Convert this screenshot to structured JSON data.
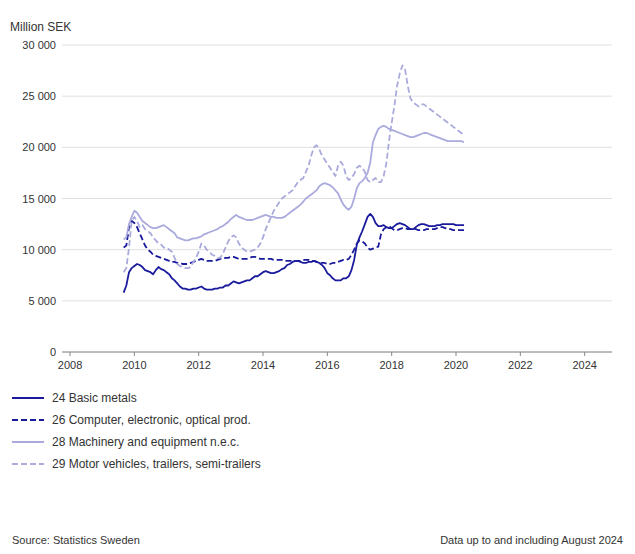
{
  "chart_data": {
    "type": "line",
    "ylabel": "Million SEK",
    "annotations": [
      "Source: Statistics Sweden",
      "Data up to and including August 2024"
    ],
    "x": [
      2009.6666666666667,
      2009.75,
      2009.8333333333333,
      2009.9166666666667,
      2010,
      2010.0833333333333,
      2010.1666666666667,
      2010.25,
      2010.3333333333333,
      2010.4166666666667,
      2010.5,
      2010.5833333333333,
      2010.6666666666667,
      2010.75,
      2010.8333333333333,
      2010.9166666666667,
      2011,
      2011.0833333333333,
      2011.1666666666667,
      2011.25,
      2011.3333333333333,
      2011.4166666666667,
      2011.5,
      2011.5833333333333,
      2011.6666666666667,
      2011.75,
      2011.8333333333333,
      2011.9166666666667,
      2012,
      2012.0833333333333,
      2012.1666666666667,
      2012.25,
      2012.3333333333333,
      2012.4166666666667,
      2012.5,
      2012.5833333333333,
      2012.6666666666667,
      2012.75,
      2012.8333333333333,
      2012.9166666666667,
      2013,
      2013.0833333333333,
      2013.1666666666667,
      2013.25,
      2013.3333333333333,
      2013.4166666666667,
      2013.5,
      2013.5833333333333,
      2013.6666666666667,
      2013.75,
      2013.8333333333333,
      2013.9166666666667,
      2014,
      2014.0833333333333,
      2014.1666666666667,
      2014.25,
      2014.3333333333333,
      2014.4166666666667,
      2014.5,
      2014.5833333333333,
      2014.6666666666667,
      2014.75,
      2014.8333333333333,
      2014.9166666666667,
      2015,
      2015.0833333333333,
      2015.1666666666667,
      2015.25,
      2015.3333333333333,
      2015.4166666666667,
      2015.5,
      2015.5833333333333,
      2015.6666666666667,
      2015.75,
      2015.8333333333333,
      2015.9166666666667,
      2016,
      2016.0833333333333,
      2016.1666666666667,
      2016.25,
      2016.3333333333333,
      2016.4166666666667,
      2016.5,
      2016.5833333333333,
      2016.6666666666667,
      2016.75,
      2016.8333333333333,
      2016.9166666666667,
      2017,
      2017.0833333333333,
      2017.1666666666667,
      2017.25,
      2017.3333333333333,
      2017.4166666666667,
      2017.5,
      2017.5833333333333,
      2017.6666666666667,
      2017.75,
      2017.8333333333333,
      2017.9166666666667,
      2018,
      2018.0833333333333,
      2018.1666666666667,
      2018.25,
      2018.3333333333333,
      2018.4166666666667,
      2018.5,
      2018.5833333333333,
      2018.6666666666667,
      2018.75,
      2018.8333333333333,
      2018.9166666666667,
      2019,
      2019.0833333333333,
      2019.1666666666667,
      2019.25,
      2019.3333333333333,
      2019.4166666666667,
      2019.5,
      2019.5833333333333,
      2019.6666666666667,
      2019.75,
      2019.8333333333333,
      2019.9166666666667,
      2020,
      2020.0833333333333,
      2020.1666666666667,
      2020.25
    ],
    "series": [
      {
        "name": "24 Basic metals",
        "color": "#1a1a9c",
        "line_style": "solid",
        "values": [
          5800,
          6500,
          7800,
          8200,
          8400,
          8600,
          8500,
          8300,
          8000,
          7900,
          7800,
          7600,
          8000,
          8300,
          8100,
          8000,
          7800,
          7600,
          7200,
          7000,
          6700,
          6400,
          6200,
          6200,
          6100,
          6100,
          6200,
          6200,
          6300,
          6400,
          6200,
          6100,
          6100,
          6100,
          6200,
          6200,
          6300,
          6300,
          6500,
          6500,
          6700,
          6900,
          6800,
          6700,
          6800,
          6900,
          7000,
          7000,
          7200,
          7400,
          7400,
          7600,
          7800,
          7900,
          7800,
          7700,
          7700,
          7800,
          7900,
          8100,
          8200,
          8500,
          8600,
          8800,
          8900,
          8900,
          8800,
          8700,
          8700,
          8800,
          8800,
          8900,
          8800,
          8700,
          8500,
          8200,
          7700,
          7500,
          7200,
          7000,
          7000,
          7000,
          7200,
          7200,
          7400,
          8000,
          9000,
          10500,
          11200,
          11800,
          12500,
          13200,
          13500,
          13200,
          12600,
          12300,
          12300,
          12400,
          12200,
          12100,
          12100,
          12300,
          12500,
          12600,
          12500,
          12400,
          12200,
          12000,
          12000,
          12200,
          12400,
          12500,
          12500,
          12400,
          12300,
          12300,
          12300,
          12400,
          12400,
          12500,
          12500,
          12500,
          12500,
          12500,
          12400,
          12400,
          12400,
          12400
        ]
      },
      {
        "name": "26 Computer, electronic, optical prod.",
        "color": "#1a1a9c",
        "line_style": "dashed",
        "values": [
          10200,
          10400,
          12200,
          12800,
          12600,
          12200,
          11600,
          11000,
          10400,
          10000,
          9800,
          9500,
          9400,
          9300,
          9200,
          9100,
          9000,
          8900,
          8800,
          8800,
          8700,
          8700,
          8600,
          8600,
          8600,
          8700,
          8800,
          8900,
          9000,
          9100,
          9000,
          8900,
          8900,
          8900,
          8900,
          9000,
          9100,
          9100,
          9200,
          9200,
          9300,
          9300,
          9200,
          9100,
          9100,
          9100,
          9100,
          9200,
          9300,
          9300,
          9200,
          9100,
          9100,
          9100,
          9100,
          9100,
          9000,
          9000,
          9000,
          9000,
          8900,
          8900,
          8900,
          8900,
          8900,
          8900,
          8900,
          9000,
          9000,
          9000,
          8900,
          8900,
          8800,
          8800,
          8700,
          8700,
          8600,
          8600,
          8700,
          8700,
          8800,
          8900,
          9000,
          9000,
          9100,
          9500,
          10000,
          10600,
          10900,
          10800,
          10600,
          10200,
          10000,
          10100,
          10200,
          10300,
          11500,
          12000,
          12200,
          12300,
          12100,
          11900,
          11900,
          12000,
          12100,
          12100,
          12000,
          12000,
          12100,
          12000,
          11900,
          11900,
          11900,
          12000,
          12000,
          12000,
          12000,
          12100,
          12200,
          12200,
          12100,
          12000,
          12000,
          11900,
          11900,
          11900,
          11900,
          11900
        ]
      },
      {
        "name": "28 Machinery and equipment n.e.c.",
        "color": "#aaaadd",
        "line_style": "solid",
        "values": [
          11000,
          11200,
          12500,
          13200,
          13800,
          13600,
          13200,
          12800,
          12600,
          12400,
          12200,
          12100,
          12100,
          12200,
          12300,
          12400,
          12200,
          12000,
          11800,
          11600,
          11200,
          11100,
          11000,
          10900,
          10900,
          11000,
          11100,
          11100,
          11200,
          11300,
          11500,
          11600,
          11700,
          11800,
          11900,
          12000,
          12200,
          12300,
          12500,
          12700,
          13000,
          13200,
          13400,
          13200,
          13100,
          13000,
          12900,
          12900,
          12900,
          13000,
          13100,
          13200,
          13300,
          13400,
          13300,
          13200,
          13200,
          13100,
          13100,
          13100,
          13200,
          13400,
          13600,
          13800,
          14000,
          14200,
          14400,
          14700,
          15000,
          15200,
          15400,
          15600,
          15800,
          16200,
          16400,
          16500,
          16400,
          16300,
          16100,
          15800,
          15500,
          14900,
          14400,
          14100,
          13900,
          14200,
          15000,
          16000,
          16500,
          16700,
          17000,
          17500,
          18500,
          20500,
          21200,
          21800,
          22000,
          22100,
          22000,
          21800,
          21700,
          21600,
          21500,
          21400,
          21300,
          21200,
          21100,
          21000,
          21000,
          21100,
          21200,
          21300,
          21400,
          21400,
          21300,
          21200,
          21100,
          21000,
          20900,
          20800,
          20700,
          20600,
          20600,
          20600,
          20600,
          20600,
          20600,
          20500
        ]
      },
      {
        "name": "29 Motor vehicles, trailers, semi-trailers",
        "color": "#aaaadd",
        "line_style": "dashed",
        "values": [
          7800,
          8200,
          10200,
          12800,
          13200,
          12800,
          12200,
          12400,
          12000,
          11800,
          11600,
          11200,
          10900,
          10600,
          10500,
          10200,
          10200,
          10000,
          9800,
          9200,
          8600,
          8400,
          8300,
          8200,
          8200,
          8300,
          8800,
          9200,
          9800,
          10600,
          10400,
          10000,
          9800,
          9500,
          9400,
          9200,
          9200,
          9600,
          10200,
          10800,
          11200,
          11400,
          11200,
          10600,
          10200,
          10000,
          9800,
          9800,
          9900,
          10000,
          10200,
          10600,
          11200,
          12000,
          12600,
          13200,
          13800,
          14200,
          14600,
          15000,
          15200,
          15400,
          15600,
          15800,
          16200,
          16600,
          16800,
          17000,
          17600,
          18200,
          19200,
          20000,
          20200,
          19800,
          19200,
          18800,
          18400,
          18000,
          17600,
          17200,
          18200,
          18600,
          18200,
          17200,
          16800,
          17000,
          17400,
          18000,
          18200,
          18000,
          17600,
          16800,
          16600,
          16800,
          17000,
          16600,
          16600,
          17200,
          18400,
          20600,
          22400,
          24000,
          26000,
          27200,
          28000,
          27600,
          26000,
          24800,
          24400,
          24200,
          24000,
          24200,
          24200,
          24000,
          23800,
          23600,
          23400,
          23200,
          23000,
          22800,
          22600,
          22400,
          22200,
          22000,
          21800,
          21600,
          21400,
          21200
        ]
      }
    ],
    "xlim": [
      2007.75,
      2024.85
    ],
    "xticks": [
      2008,
      2010,
      2012,
      2014,
      2016,
      2018,
      2020,
      2022,
      2024
    ],
    "ylim": [
      0,
      30000
    ],
    "yticks": [
      0,
      {
        "value": 5000,
        "label": "5 000"
      },
      {
        "value": 10000,
        "label": "10 000"
      },
      {
        "value": 15000,
        "label": "15 000"
      },
      {
        "value": 20000,
        "label": "20 000"
      },
      {
        "value": 25000,
        "label": "25 000"
      },
      {
        "value": 30000,
        "label": "30 000"
      }
    ],
    "grid": true,
    "legend": "bottom"
  }
}
